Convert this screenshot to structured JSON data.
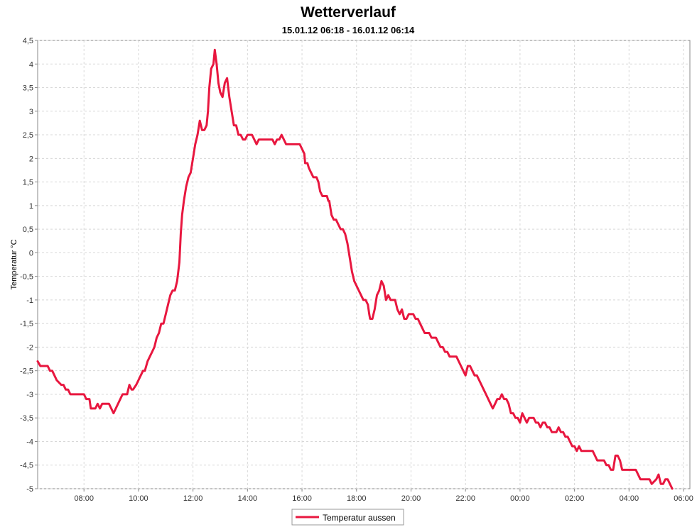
{
  "chart_data": {
    "type": "line",
    "title": "Wetterverlauf",
    "subtitle": "15.01.12 06:18 - 16.01.12 06:14",
    "xlabel": "",
    "ylabel": "Temperatur  °C",
    "x_start": "15.01.12 06:18",
    "x_end": "16.01.12 06:14",
    "ylim": [
      -5,
      4.5
    ],
    "x_ticks": [
      "08:00",
      "10:00",
      "12:00",
      "14:00",
      "16:00",
      "18:00",
      "20:00",
      "22:00",
      "00:00",
      "02:00",
      "04:00",
      "06:00"
    ],
    "y_ticks": [
      "4,5",
      "4",
      "3,5",
      "3",
      "2,5",
      "2",
      "1,5",
      "1",
      "0,5",
      "0",
      "-0,5",
      "-1",
      "-1,5",
      "-2",
      "-2,5",
      "-3",
      "-3,5",
      "-4",
      "-4,5",
      "-5"
    ],
    "grid": true,
    "legend_position": "bottom-center",
    "series": [
      {
        "name": "Temperatur aussen",
        "color": "#e8173f",
        "points": [
          [
            "06:18",
            -2.3
          ],
          [
            "06:24",
            -2.4
          ],
          [
            "06:40",
            -2.4
          ],
          [
            "06:45",
            -2.5
          ],
          [
            "06:50",
            -2.5
          ],
          [
            "07:00",
            -2.7
          ],
          [
            "07:10",
            -2.8
          ],
          [
            "07:15",
            -2.8
          ],
          [
            "07:20",
            -2.9
          ],
          [
            "07:25",
            -2.9
          ],
          [
            "07:30",
            -3.0
          ],
          [
            "07:50",
            -3.0
          ],
          [
            "08:00",
            -3.0
          ],
          [
            "08:05",
            -3.1
          ],
          [
            "08:12",
            -3.1
          ],
          [
            "08:15",
            -3.3
          ],
          [
            "08:25",
            -3.3
          ],
          [
            "08:30",
            -3.2
          ],
          [
            "08:35",
            -3.3
          ],
          [
            "08:40",
            -3.2
          ],
          [
            "08:55",
            -3.2
          ],
          [
            "09:00",
            -3.3
          ],
          [
            "09:05",
            -3.4
          ],
          [
            "09:10",
            -3.3
          ],
          [
            "09:20",
            -3.1
          ],
          [
            "09:25",
            -3.0
          ],
          [
            "09:35",
            -3.0
          ],
          [
            "09:40",
            -2.8
          ],
          [
            "09:45",
            -2.9
          ],
          [
            "09:48",
            -2.9
          ],
          [
            "09:55",
            -2.8
          ],
          [
            "10:00",
            -2.7
          ],
          [
            "10:05",
            -2.6
          ],
          [
            "10:10",
            -2.5
          ],
          [
            "10:14",
            -2.5
          ],
          [
            "10:20",
            -2.3
          ],
          [
            "10:25",
            -2.2
          ],
          [
            "10:30",
            -2.1
          ],
          [
            "10:35",
            -2.0
          ],
          [
            "10:40",
            -1.8
          ],
          [
            "10:45",
            -1.7
          ],
          [
            "10:50",
            -1.5
          ],
          [
            "10:55",
            -1.5
          ],
          [
            "11:00",
            -1.3
          ],
          [
            "11:05",
            -1.1
          ],
          [
            "11:10",
            -0.9
          ],
          [
            "11:15",
            -0.8
          ],
          [
            "11:20",
            -0.8
          ],
          [
            "11:25",
            -0.6
          ],
          [
            "11:30",
            -0.2
          ],
          [
            "11:33",
            0.4
          ],
          [
            "11:36",
            0.8
          ],
          [
            "11:40",
            1.1
          ],
          [
            "11:45",
            1.4
          ],
          [
            "11:50",
            1.6
          ],
          [
            "11:55",
            1.7
          ],
          [
            "12:00",
            2.0
          ],
          [
            "12:05",
            2.3
          ],
          [
            "12:10",
            2.5
          ],
          [
            "12:15",
            2.8
          ],
          [
            "12:20",
            2.6
          ],
          [
            "12:25",
            2.6
          ],
          [
            "12:30",
            2.7
          ],
          [
            "12:33",
            3.0
          ],
          [
            "12:36",
            3.5
          ],
          [
            "12:40",
            3.9
          ],
          [
            "12:45",
            4.0
          ],
          [
            "12:48",
            4.3
          ],
          [
            "12:52",
            4.0
          ],
          [
            "12:56",
            3.6
          ],
          [
            "13:00",
            3.4
          ],
          [
            "13:05",
            3.3
          ],
          [
            "13:10",
            3.6
          ],
          [
            "13:15",
            3.7
          ],
          [
            "13:20",
            3.3
          ],
          [
            "13:25",
            3.0
          ],
          [
            "13:30",
            2.7
          ],
          [
            "13:35",
            2.7
          ],
          [
            "13:40",
            2.5
          ],
          [
            "13:45",
            2.5
          ],
          [
            "13:50",
            2.4
          ],
          [
            "13:55",
            2.4
          ],
          [
            "14:00",
            2.5
          ],
          [
            "14:10",
            2.5
          ],
          [
            "14:15",
            2.4
          ],
          [
            "14:20",
            2.3
          ],
          [
            "14:25",
            2.4
          ],
          [
            "14:55",
            2.4
          ],
          [
            "15:00",
            2.3
          ],
          [
            "15:05",
            2.4
          ],
          [
            "15:10",
            2.4
          ],
          [
            "15:15",
            2.5
          ],
          [
            "15:20",
            2.4
          ],
          [
            "15:25",
            2.3
          ],
          [
            "15:55",
            2.3
          ],
          [
            "16:00",
            2.2
          ],
          [
            "16:05",
            2.1
          ],
          [
            "16:07",
            1.9
          ],
          [
            "16:12",
            1.9
          ],
          [
            "16:15",
            1.8
          ],
          [
            "16:20",
            1.7
          ],
          [
            "16:25",
            1.6
          ],
          [
            "16:32",
            1.6
          ],
          [
            "16:36",
            1.5
          ],
          [
            "16:40",
            1.3
          ],
          [
            "16:45",
            1.2
          ],
          [
            "16:55",
            1.2
          ],
          [
            "16:58",
            1.1
          ],
          [
            "17:00",
            1.1
          ],
          [
            "17:05",
            0.8
          ],
          [
            "17:10",
            0.7
          ],
          [
            "17:15",
            0.7
          ],
          [
            "17:20",
            0.6
          ],
          [
            "17:25",
            0.5
          ],
          [
            "17:30",
            0.5
          ],
          [
            "17:35",
            0.4
          ],
          [
            "17:40",
            0.2
          ],
          [
            "17:45",
            -0.1
          ],
          [
            "17:50",
            -0.4
          ],
          [
            "17:55",
            -0.6
          ],
          [
            "18:00",
            -0.7
          ],
          [
            "18:05",
            -0.8
          ],
          [
            "18:10",
            -0.9
          ],
          [
            "18:15",
            -1.0
          ],
          [
            "18:20",
            -1.0
          ],
          [
            "18:25",
            -1.1
          ],
          [
            "18:28",
            -1.3
          ],
          [
            "18:30",
            -1.4
          ],
          [
            "18:35",
            -1.4
          ],
          [
            "18:40",
            -1.2
          ],
          [
            "18:45",
            -0.9
          ],
          [
            "18:50",
            -0.8
          ],
          [
            "18:55",
            -0.6
          ],
          [
            "19:00",
            -0.7
          ],
          [
            "19:05",
            -1.0
          ],
          [
            "19:10",
            -0.9
          ],
          [
            "19:15",
            -1.0
          ],
          [
            "19:25",
            -1.0
          ],
          [
            "19:30",
            -1.2
          ],
          [
            "19:35",
            -1.3
          ],
          [
            "19:40",
            -1.2
          ],
          [
            "19:45",
            -1.4
          ],
          [
            "19:50",
            -1.4
          ],
          [
            "19:55",
            -1.3
          ],
          [
            "20:05",
            -1.3
          ],
          [
            "20:10",
            -1.4
          ],
          [
            "20:15",
            -1.4
          ],
          [
            "20:20",
            -1.5
          ],
          [
            "20:25",
            -1.6
          ],
          [
            "20:30",
            -1.7
          ],
          [
            "20:40",
            -1.7
          ],
          [
            "20:45",
            -1.8
          ],
          [
            "20:55",
            -1.8
          ],
          [
            "21:00",
            -1.9
          ],
          [
            "21:05",
            -2.0
          ],
          [
            "21:10",
            -2.0
          ],
          [
            "21:15",
            -2.1
          ],
          [
            "21:20",
            -2.1
          ],
          [
            "21:25",
            -2.2
          ],
          [
            "21:40",
            -2.2
          ],
          [
            "21:45",
            -2.3
          ],
          [
            "21:50",
            -2.4
          ],
          [
            "21:55",
            -2.5
          ],
          [
            "22:00",
            -2.6
          ],
          [
            "22:05",
            -2.4
          ],
          [
            "22:10",
            -2.4
          ],
          [
            "22:15",
            -2.5
          ],
          [
            "22:20",
            -2.6
          ],
          [
            "22:25",
            -2.6
          ],
          [
            "22:30",
            -2.7
          ],
          [
            "22:35",
            -2.8
          ],
          [
            "22:40",
            -2.9
          ],
          [
            "22:45",
            -3.0
          ],
          [
            "22:50",
            -3.1
          ],
          [
            "22:55",
            -3.2
          ],
          [
            "23:00",
            -3.3
          ],
          [
            "23:05",
            -3.2
          ],
          [
            "23:10",
            -3.1
          ],
          [
            "23:15",
            -3.1
          ],
          [
            "23:20",
            -3.0
          ],
          [
            "23:25",
            -3.1
          ],
          [
            "23:30",
            -3.1
          ],
          [
            "23:35",
            -3.2
          ],
          [
            "23:40",
            -3.4
          ],
          [
            "23:45",
            -3.4
          ],
          [
            "23:50",
            -3.5
          ],
          [
            "23:55",
            -3.5
          ],
          [
            "24:00",
            -3.6
          ],
          [
            "24:05",
            -3.4
          ],
          [
            "24:10",
            -3.5
          ],
          [
            "24:15",
            -3.6
          ],
          [
            "24:20",
            -3.5
          ],
          [
            "24:30",
            -3.5
          ],
          [
            "24:35",
            -3.6
          ],
          [
            "24:40",
            -3.6
          ],
          [
            "24:45",
            -3.7
          ],
          [
            "24:50",
            -3.6
          ],
          [
            "24:55",
            -3.6
          ],
          [
            "25:00",
            -3.7
          ],
          [
            "25:05",
            -3.7
          ],
          [
            "25:10",
            -3.8
          ],
          [
            "25:20",
            -3.8
          ],
          [
            "25:25",
            -3.7
          ],
          [
            "25:30",
            -3.8
          ],
          [
            "25:35",
            -3.8
          ],
          [
            "25:40",
            -3.9
          ],
          [
            "25:45",
            -3.9
          ],
          [
            "25:50",
            -4.0
          ],
          [
            "25:55",
            -4.1
          ],
          [
            "26:00",
            -4.1
          ],
          [
            "26:05",
            -4.2
          ],
          [
            "26:10",
            -4.1
          ],
          [
            "26:15",
            -4.2
          ],
          [
            "26:40",
            -4.2
          ],
          [
            "26:45",
            -4.3
          ],
          [
            "26:50",
            -4.4
          ],
          [
            "27:05",
            -4.4
          ],
          [
            "27:10",
            -4.5
          ],
          [
            "27:15",
            -4.5
          ],
          [
            "27:20",
            -4.6
          ],
          [
            "27:25",
            -4.6
          ],
          [
            "27:30",
            -4.3
          ],
          [
            "27:35",
            -4.3
          ],
          [
            "27:40",
            -4.4
          ],
          [
            "27:45",
            -4.6
          ],
          [
            "28:15",
            -4.6
          ],
          [
            "28:20",
            -4.7
          ],
          [
            "28:25",
            -4.8
          ],
          [
            "28:45",
            -4.8
          ],
          [
            "28:50",
            -4.9
          ],
          [
            "29:00",
            -4.8
          ],
          [
            "29:05",
            -4.7
          ],
          [
            "29:10",
            -4.9
          ],
          [
            "29:15",
            -4.9
          ],
          [
            "29:20",
            -4.8
          ],
          [
            "29:25",
            -4.8
          ],
          [
            "29:30",
            -4.9
          ],
          [
            "29:35",
            -5.0
          ]
        ]
      }
    ]
  }
}
